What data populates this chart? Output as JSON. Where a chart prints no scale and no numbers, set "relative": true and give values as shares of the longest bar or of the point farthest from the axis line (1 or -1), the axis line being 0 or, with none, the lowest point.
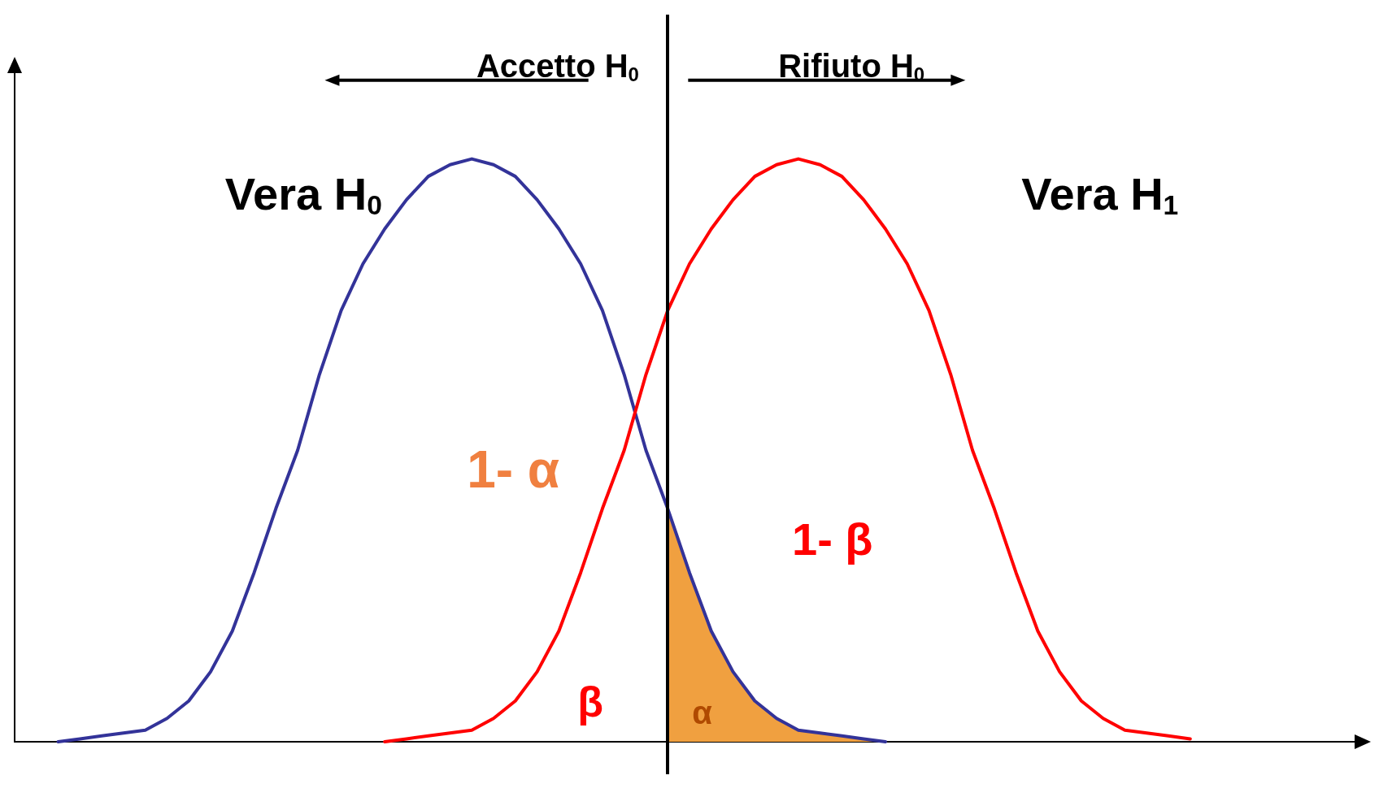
{
  "chart_data": {
    "type": "line",
    "relative": true,
    "categories": [
      null,
      null,
      null,
      null,
      null,
      null,
      null,
      null,
      null,
      null,
      null,
      null,
      null,
      null,
      null,
      null,
      null,
      null,
      null,
      null,
      null,
      null,
      null,
      null,
      null,
      null,
      null,
      null,
      null,
      null,
      null,
      null,
      null,
      null,
      null,
      null,
      null,
      null,
      null,
      null,
      null,
      null,
      null,
      null,
      null,
      null,
      null,
      null,
      null,
      null,
      null,
      null,
      null,
      null,
      null,
      null,
      null,
      null,
      null,
      null,
      null,
      null,
      null
    ],
    "series": [
      {
        "color": "#333399",
        "values": [
          null,
          null,
          0,
          0.005,
          0.01,
          0.015,
          0.02,
          0.04,
          0.07,
          0.12,
          0.19,
          0.29,
          0.4,
          0.5,
          0.63,
          0.74,
          0.82,
          0.88,
          0.93,
          0.97,
          0.99,
          1,
          0.99,
          0.97,
          0.93,
          0.88,
          0.82,
          0.74,
          0.63,
          0.5,
          0.4,
          0.29,
          0.19,
          0.12,
          0.07,
          0.04,
          0.02,
          0.015,
          0.01,
          0.005,
          0,
          null,
          null,
          null,
          null,
          null,
          null,
          null,
          null,
          null,
          null,
          null,
          null,
          null,
          null,
          null,
          null,
          null,
          null,
          null,
          null,
          null,
          null
        ]
      },
      {
        "color": "#ff0000",
        "values": [
          null,
          null,
          null,
          null,
          null,
          null,
          null,
          null,
          null,
          null,
          null,
          null,
          null,
          null,
          null,
          null,
          null,
          0,
          0.005,
          0.01,
          0.015,
          0.02,
          0.04,
          0.07,
          0.12,
          0.19,
          0.29,
          0.4,
          0.5,
          0.63,
          0.74,
          0.82,
          0.88,
          0.93,
          0.97,
          0.99,
          1,
          0.99,
          0.97,
          0.93,
          0.88,
          0.82,
          0.74,
          0.63,
          0.5,
          0.4,
          0.29,
          0.19,
          0.12,
          0.07,
          0.04,
          0.02,
          0.015,
          0.01,
          0.005,
          null,
          null,
          null,
          null,
          null,
          null,
          null,
          null
        ]
      },
      {
        "type": "area",
        "color": "#f0a040",
        "values": [
          null,
          null,
          null,
          null,
          null,
          null,
          null,
          null,
          null,
          null,
          null,
          null,
          null,
          null,
          null,
          null,
          null,
          null,
          null,
          null,
          null,
          null,
          null,
          null,
          null,
          null,
          null,
          null,
          null,
          null,
          0.4,
          0.29,
          0.19,
          0.12,
          0.07,
          0.04,
          0.02,
          0.015,
          0.01,
          0.005,
          0,
          null,
          null,
          null,
          null,
          null,
          null,
          null,
          null,
          null,
          null,
          null,
          null,
          null,
          null,
          null,
          null,
          null,
          null,
          null,
          null,
          null,
          null
        ]
      }
    ],
    "annotations": [
      "Accetto H$_{0}$",
      "Rifiuto H$_{0}$",
      "Vera H$_{0}$",
      "Vera H$_{1}$",
      "1- α",
      "1- β",
      "β",
      "α"
    ],
    "grid": false,
    "marker": "none",
    "line_style": "solid"
  }
}
